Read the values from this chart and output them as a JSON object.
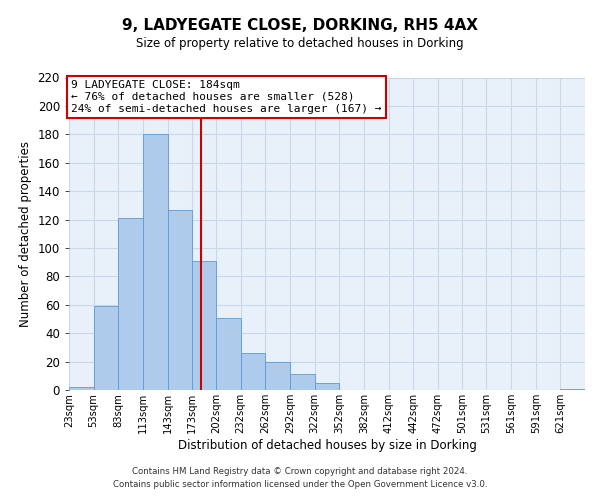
{
  "title": "9, LADYEGATE CLOSE, DORKING, RH5 4AX",
  "subtitle": "Size of property relative to detached houses in Dorking",
  "xlabel": "Distribution of detached houses by size in Dorking",
  "ylabel": "Number of detached properties",
  "bin_labels": [
    "23sqm",
    "53sqm",
    "83sqm",
    "113sqm",
    "143sqm",
    "173sqm",
    "202sqm",
    "232sqm",
    "262sqm",
    "292sqm",
    "322sqm",
    "352sqm",
    "382sqm",
    "412sqm",
    "442sqm",
    "472sqm",
    "501sqm",
    "531sqm",
    "561sqm",
    "591sqm",
    "621sqm"
  ],
  "bar_values": [
    2,
    59,
    121,
    180,
    127,
    91,
    51,
    26,
    20,
    11,
    5,
    0,
    0,
    0,
    0,
    0,
    0,
    0,
    0,
    0,
    1
  ],
  "bar_left_edges": [
    23,
    53,
    83,
    113,
    143,
    173,
    202,
    232,
    262,
    292,
    322,
    352,
    382,
    412,
    442,
    472,
    501,
    531,
    561,
    591,
    621
  ],
  "bar_widths": [
    30,
    30,
    30,
    30,
    30,
    29,
    30,
    30,
    30,
    30,
    30,
    30,
    30,
    30,
    30,
    29,
    30,
    30,
    30,
    30,
    30
  ],
  "property_size": 184,
  "red_line_x": 184,
  "annotation_title": "9 LADYEGATE CLOSE: 184sqm",
  "annotation_line1": "← 76% of detached houses are smaller (528)",
  "annotation_line2": "24% of semi-detached houses are larger (167) →",
  "bar_color": "#aecbeb",
  "bar_edge_color": "#5b9bd5",
  "red_line_color": "#cc0000",
  "annotation_box_edge": "#cc0000",
  "annotation_box_face": "#ffffff",
  "grid_color": "#c8d8e8",
  "background_color": "#e8f1fa",
  "ylim": [
    0,
    220
  ],
  "yticks": [
    0,
    20,
    40,
    60,
    80,
    100,
    120,
    140,
    160,
    180,
    200,
    220
  ],
  "footer1": "Contains HM Land Registry data © Crown copyright and database right 2024.",
  "footer2": "Contains public sector information licensed under the Open Government Licence v3.0."
}
